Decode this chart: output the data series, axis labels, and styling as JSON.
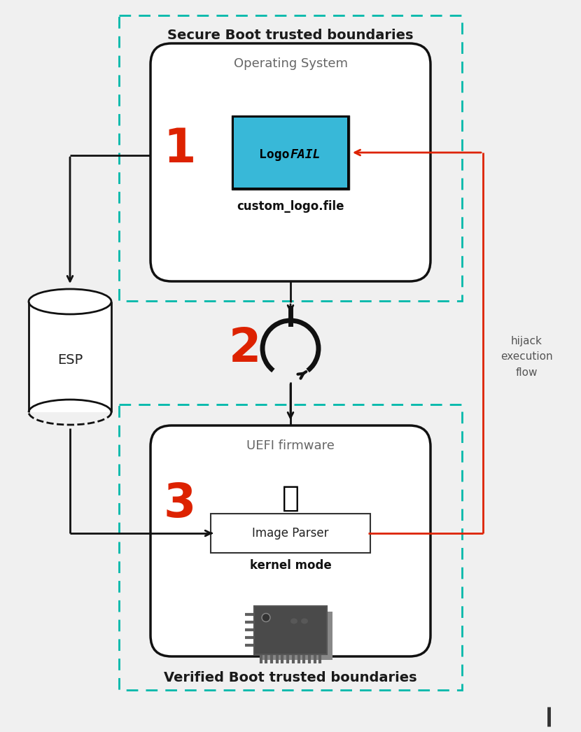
{
  "bg_color": "#f0f0f0",
  "title_secure": "Secure Boot trusted boundaries",
  "title_verified": "Verified Boot trusted boundaries",
  "os_label": "Operating System",
  "uefi_label": "UEFI firmware",
  "esp_label": "ESP",
  "logo_label": "custom_logo.file",
  "image_parser_label": "Image Parser",
  "kernel_mode_label": "kernel mode",
  "hijack_label": "hijack\nexecution\nflow",
  "step1_color": "#dd2200",
  "step2_color": "#dd2200",
  "step3_color": "#dd2200",
  "dashed_color": "#00b8aa",
  "border_color": "#111111",
  "arrow_color": "#111111",
  "red_color": "#dd2200",
  "logo_screen": "#38b8d8",
  "white": "#ffffff",
  "chip_color": "#4a4a4a",
  "text_gray": "#666666"
}
